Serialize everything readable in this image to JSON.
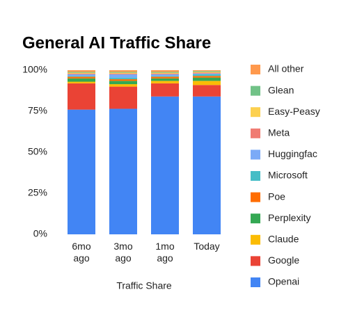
{
  "chart_data": {
    "type": "stacked_bar",
    "title": "General AI Traffic Share",
    "x_label": "Traffic Share",
    "categories": [
      "6mo ago",
      "3mo ago",
      "1mo ago",
      "Today"
    ],
    "series": [
      {
        "name": "Openai",
        "color": "#4285f4",
        "values": [
          76,
          76.5,
          84,
          84
        ]
      },
      {
        "name": "Google",
        "color": "#ea4335",
        "values": [
          16,
          13.5,
          8,
          7
        ]
      },
      {
        "name": "Claude",
        "color": "#fbbc04",
        "values": [
          1,
          1.5,
          1.5,
          2.5
        ]
      },
      {
        "name": "Perplexity",
        "color": "#34a853",
        "values": [
          2,
          2,
          1.5,
          2
        ]
      },
      {
        "name": "Poe",
        "color": "#ff6d01",
        "values": [
          1,
          1,
          1,
          1
        ]
      },
      {
        "name": "Microsoft",
        "color": "#46bdc6",
        "values": [
          0.5,
          1,
          0.5,
          1
        ]
      },
      {
        "name": "Huggingfac",
        "color": "#7baaf7",
        "values": [
          1,
          2,
          1,
          0.5
        ]
      },
      {
        "name": "Meta",
        "color": "#f07b72",
        "values": [
          0.5,
          0.5,
          0.5,
          0.5
        ]
      },
      {
        "name": "Easy-Peasy",
        "color": "#fcd04f",
        "values": [
          0.5,
          0.5,
          0.5,
          0.5
        ]
      },
      {
        "name": "Glean",
        "color": "#71c287",
        "values": [
          0.5,
          0.5,
          0.5,
          0.5
        ]
      },
      {
        "name": "All other",
        "color": "#ff994d",
        "values": [
          1,
          1,
          1,
          0.5
        ]
      }
    ],
    "ylim": [
      0,
      100
    ],
    "yticks": [
      {
        "value": 0,
        "label": "0%"
      },
      {
        "value": 25,
        "label": "25%"
      },
      {
        "value": 50,
        "label": "50%"
      },
      {
        "value": 75,
        "label": "75%"
      },
      {
        "value": 100,
        "label": "100%"
      }
    ],
    "grid": false,
    "legend": "right"
  }
}
